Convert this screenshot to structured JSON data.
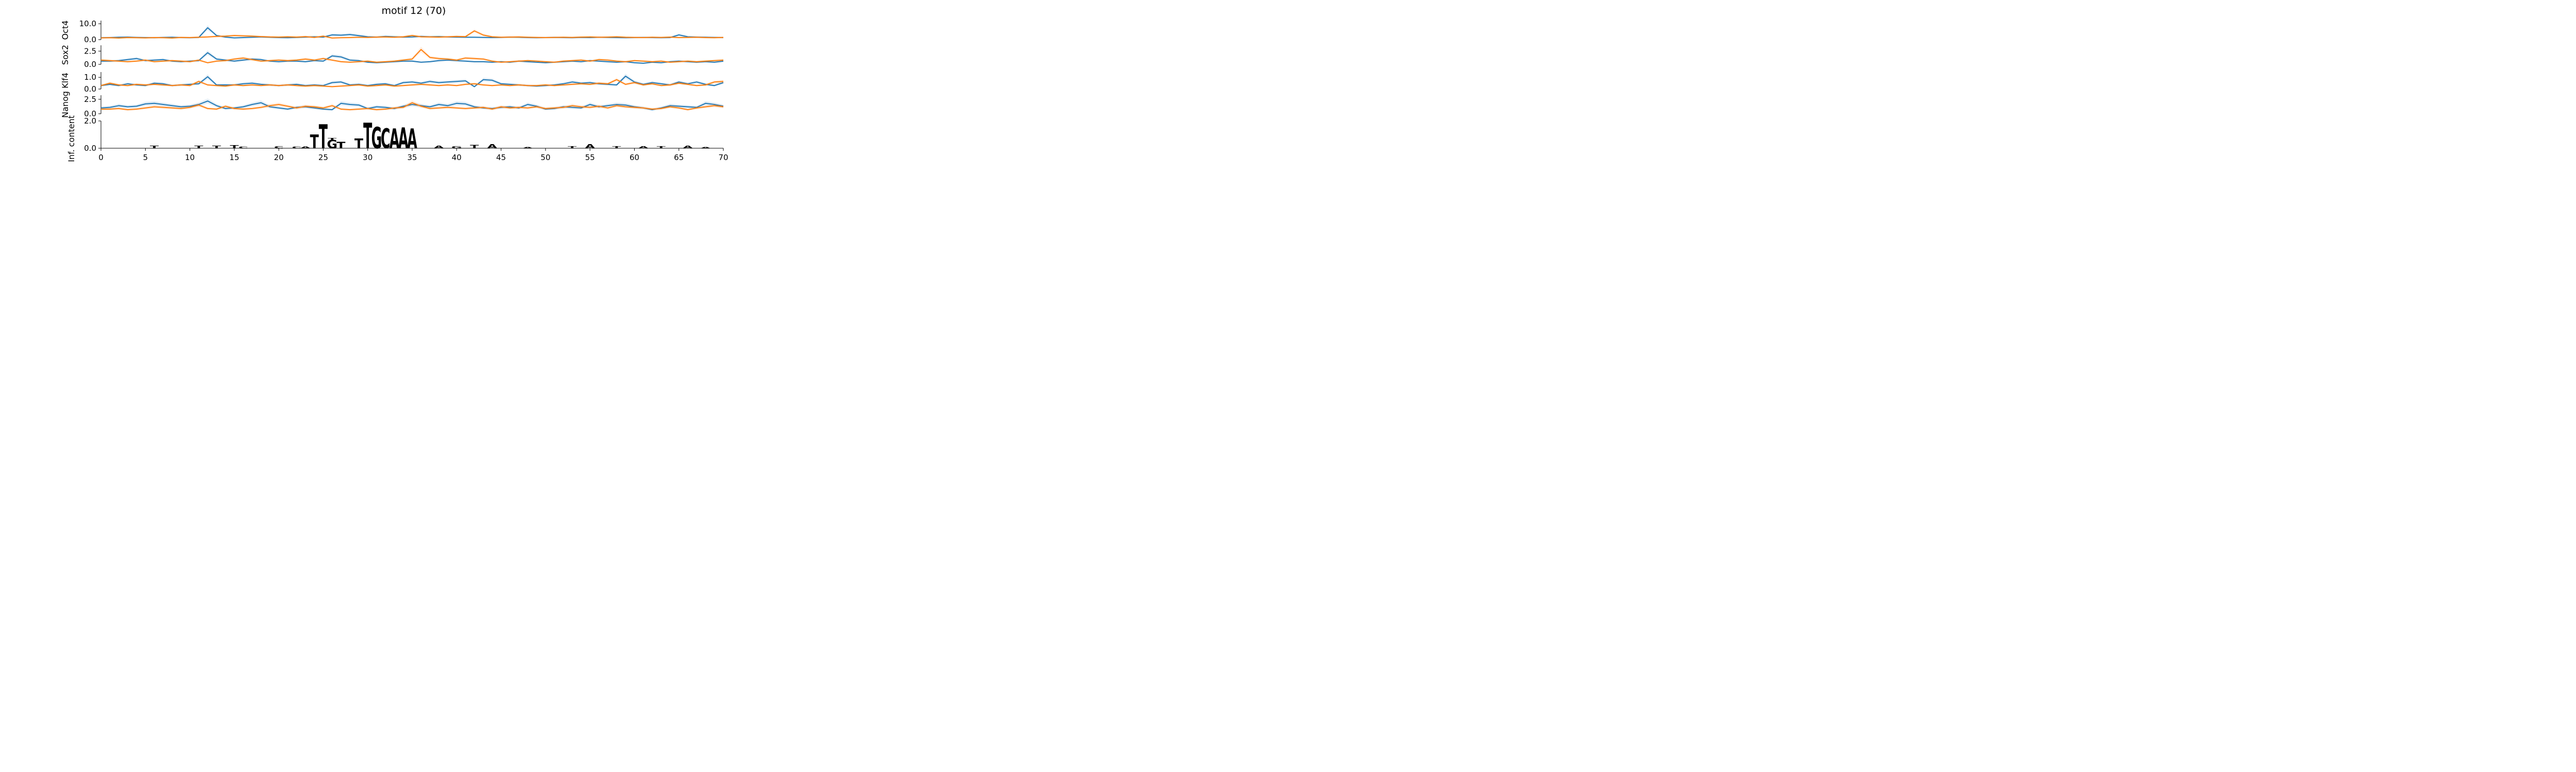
{
  "chart_data": {
    "type": "line",
    "title": "motif 12 (70)",
    "x_ticks": [
      0,
      5,
      10,
      15,
      20,
      25,
      30,
      35,
      40,
      45,
      50,
      55,
      60,
      65,
      70
    ],
    "x_tick_labels": [
      "0",
      "5",
      "10",
      "15",
      "20",
      "25",
      "30",
      "35",
      "40",
      "45",
      "50",
      "55",
      "60",
      "65",
      "70"
    ],
    "xlim": [
      0,
      70
    ],
    "series_colors": {
      "blue": "#1f77b4",
      "orange": "#ff7f0e"
    },
    "panels": [
      {
        "ylabel": "Oct4",
        "ylim": [
          0,
          12
        ],
        "yticks": [
          0,
          10
        ],
        "ytick_labels": [
          "0.0",
          "10.0"
        ],
        "series": [
          {
            "color": "#1f77b4",
            "values": [
              1.2,
              1.3,
              1.5,
              1.6,
              1.4,
              1.3,
              1.2,
              1.4,
              1.5,
              1.3,
              1.2,
              1.4,
              7.5,
              2.6,
              1.6,
              1.1,
              1.3,
              1.5,
              1.7,
              1.5,
              1.3,
              1.2,
              1.4,
              1.6,
              1.8,
              1.6,
              3.0,
              2.8,
              3.2,
              2.5,
              1.8,
              1.6,
              2.0,
              1.8,
              1.6,
              1.7,
              2.0,
              1.8,
              1.9,
              1.7,
              1.6,
              1.5,
              1.5,
              1.4,
              1.3,
              1.4,
              1.6,
              1.5,
              1.3,
              1.2,
              1.3,
              1.4,
              1.3,
              1.2,
              1.4,
              1.3,
              1.5,
              1.4,
              1.3,
              1.2,
              1.3,
              1.4,
              1.3,
              1.2,
              1.3,
              3.0,
              1.8,
              1.6,
              1.5,
              1.4,
              1.3
            ]
          },
          {
            "color": "#ff7f0e",
            "values": [
              1.1,
              1.2,
              1.0,
              1.3,
              1.2,
              1.1,
              1.3,
              1.2,
              1.0,
              1.4,
              1.3,
              1.5,
              1.7,
              2.0,
              2.2,
              2.6,
              2.4,
              2.2,
              1.9,
              1.7,
              1.6,
              1.8,
              1.6,
              1.9,
              1.4,
              2.2,
              1.0,
              1.2,
              1.3,
              1.5,
              1.4,
              1.6,
              1.7,
              1.5,
              1.8,
              2.6,
              1.8,
              1.7,
              1.6,
              1.8,
              2.0,
              1.9,
              5.5,
              2.9,
              1.8,
              1.5,
              1.6,
              1.7,
              1.5,
              1.4,
              1.3,
              1.4,
              1.5,
              1.4,
              1.6,
              1.7,
              1.5,
              1.6,
              1.8,
              1.5,
              1.4,
              1.3,
              1.5,
              1.4,
              1.6,
              1.3,
              1.4,
              1.5,
              1.3,
              1.2,
              1.4
            ]
          }
        ]
      },
      {
        "ylabel": "Sox2",
        "ylim": [
          0,
          3.6
        ],
        "yticks": [
          0,
          2.5
        ],
        "ytick_labels": [
          "0.0",
          "2.5"
        ],
        "series": [
          {
            "color": "#1f77b4",
            "values": [
              0.6,
              0.6,
              0.7,
              0.9,
              1.1,
              0.7,
              0.8,
              0.9,
              0.6,
              0.5,
              0.6,
              0.7,
              2.2,
              1.0,
              0.8,
              0.6,
              0.8,
              1.0,
              0.9,
              0.6,
              0.5,
              0.6,
              0.6,
              0.5,
              0.7,
              0.6,
              1.6,
              1.4,
              0.8,
              0.7,
              0.4,
              0.3,
              0.4,
              0.5,
              0.6,
              0.6,
              0.4,
              0.5,
              0.7,
              0.8,
              0.7,
              0.6,
              0.5,
              0.5,
              0.4,
              0.5,
              0.4,
              0.6,
              0.5,
              0.4,
              0.3,
              0.4,
              0.5,
              0.6,
              0.5,
              0.7,
              0.6,
              0.5,
              0.4,
              0.5,
              0.3,
              0.2,
              0.4,
              0.3,
              0.5,
              0.6,
              0.5,
              0.4,
              0.5,
              0.4,
              0.6
            ]
          },
          {
            "color": "#ff7f0e",
            "values": [
              0.8,
              0.7,
              0.6,
              0.5,
              0.6,
              0.8,
              0.5,
              0.6,
              0.7,
              0.6,
              0.5,
              0.8,
              0.3,
              0.6,
              0.7,
              1.0,
              1.2,
              0.9,
              0.6,
              0.7,
              0.8,
              0.7,
              0.8,
              1.0,
              0.8,
              1.1,
              0.8,
              0.5,
              0.4,
              0.5,
              0.6,
              0.4,
              0.5,
              0.6,
              0.8,
              1.0,
              2.8,
              1.3,
              1.1,
              1.0,
              0.8,
              1.2,
              1.1,
              1.0,
              0.6,
              0.4,
              0.5,
              0.6,
              0.7,
              0.6,
              0.5,
              0.4,
              0.6,
              0.7,
              0.8,
              0.6,
              0.9,
              0.8,
              0.6,
              0.5,
              0.7,
              0.6,
              0.5,
              0.6,
              0.4,
              0.5,
              0.6,
              0.5,
              0.6,
              0.7,
              0.8
            ]
          }
        ]
      },
      {
        "ylabel": "Klf4",
        "ylim": [
          0,
          1.45
        ],
        "yticks": [
          0,
          1.0
        ],
        "ytick_labels": [
          "0.0",
          "1.0"
        ],
        "series": [
          {
            "color": "#1f77b4",
            "values": [
              0.3,
              0.4,
              0.3,
              0.45,
              0.35,
              0.3,
              0.5,
              0.45,
              0.3,
              0.35,
              0.4,
              0.45,
              1.05,
              0.35,
              0.35,
              0.35,
              0.45,
              0.5,
              0.4,
              0.35,
              0.3,
              0.35,
              0.4,
              0.3,
              0.35,
              0.3,
              0.55,
              0.6,
              0.35,
              0.4,
              0.3,
              0.4,
              0.45,
              0.3,
              0.55,
              0.6,
              0.5,
              0.65,
              0.55,
              0.6,
              0.65,
              0.7,
              0.2,
              0.8,
              0.75,
              0.45,
              0.4,
              0.35,
              0.3,
              0.25,
              0.3,
              0.35,
              0.45,
              0.6,
              0.5,
              0.55,
              0.45,
              0.4,
              0.35,
              1.1,
              0.6,
              0.4,
              0.55,
              0.45,
              0.35,
              0.6,
              0.45,
              0.6,
              0.4,
              0.3,
              0.55
            ]
          },
          {
            "color": "#ff7f0e",
            "values": [
              0.3,
              0.5,
              0.35,
              0.3,
              0.4,
              0.35,
              0.4,
              0.35,
              0.3,
              0.35,
              0.3,
              0.65,
              0.35,
              0.3,
              0.25,
              0.35,
              0.3,
              0.35,
              0.3,
              0.35,
              0.3,
              0.35,
              0.3,
              0.25,
              0.3,
              0.25,
              0.2,
              0.25,
              0.3,
              0.35,
              0.25,
              0.3,
              0.35,
              0.25,
              0.3,
              0.35,
              0.4,
              0.35,
              0.3,
              0.35,
              0.3,
              0.4,
              0.45,
              0.35,
              0.3,
              0.35,
              0.3,
              0.35,
              0.3,
              0.3,
              0.35,
              0.3,
              0.35,
              0.4,
              0.45,
              0.4,
              0.5,
              0.45,
              0.8,
              0.4,
              0.55,
              0.35,
              0.45,
              0.3,
              0.35,
              0.5,
              0.4,
              0.3,
              0.35,
              0.6,
              0.65
            ]
          }
        ]
      },
      {
        "ylabel": "Nanog",
        "ylim": [
          0,
          3.2
        ],
        "yticks": [
          0,
          2.5
        ],
        "ytick_labels": [
          "0.0",
          "2.5"
        ],
        "series": [
          {
            "color": "#1f77b4",
            "values": [
              1.0,
              1.1,
              1.4,
              1.2,
              1.3,
              1.7,
              1.8,
              1.6,
              1.4,
              1.2,
              1.3,
              1.6,
              2.2,
              1.4,
              0.9,
              1.0,
              1.2,
              1.6,
              1.9,
              1.2,
              1.0,
              0.8,
              1.1,
              1.2,
              1.0,
              0.8,
              0.7,
              1.8,
              1.6,
              1.5,
              0.9,
              1.2,
              1.1,
              0.9,
              1.3,
              1.6,
              1.4,
              1.2,
              1.6,
              1.4,
              1.8,
              1.7,
              1.2,
              1.0,
              0.9,
              1.1,
              1.2,
              1.0,
              1.6,
              1.3,
              0.8,
              0.9,
              1.2,
              1.1,
              1.0,
              1.6,
              1.2,
              1.4,
              1.6,
              1.5,
              1.2,
              1.0,
              0.7,
              1.0,
              1.4,
              1.3,
              1.2,
              1.1,
              1.8,
              1.6,
              1.3
            ]
          },
          {
            "color": "#ff7f0e",
            "values": [
              0.8,
              0.8,
              0.9,
              0.7,
              0.8,
              1.0,
              1.2,
              1.1,
              1.0,
              0.9,
              1.1,
              1.5,
              0.9,
              0.8,
              1.3,
              0.9,
              0.8,
              0.9,
              1.1,
              1.4,
              1.6,
              1.3,
              1.0,
              1.3,
              1.2,
              1.0,
              1.4,
              0.8,
              0.7,
              0.8,
              0.9,
              0.7,
              0.8,
              1.0,
              1.1,
              1.9,
              1.3,
              0.9,
              1.0,
              1.1,
              1.0,
              0.9,
              1.0,
              1.1,
              0.8,
              1.2,
              1.0,
              1.1,
              1.0,
              1.2,
              0.9,
              1.0,
              1.1,
              1.4,
              1.2,
              1.1,
              1.3,
              1.0,
              1.4,
              1.2,
              1.1,
              1.0,
              0.8,
              0.9,
              1.2,
              1.0,
              0.7,
              1.0,
              1.2,
              1.4,
              1.2
            ]
          }
        ]
      }
    ],
    "logo": {
      "ylabel": "Inf. content",
      "ylim": [
        0,
        2.0
      ],
      "yticks": [
        0,
        2.0
      ],
      "ytick_labels": [
        "0.0",
        "2.0"
      ],
      "letter_colors": {
        "A": "#008000",
        "C": "#0000cc",
        "G": "#ffa500",
        "T": "#ff0000"
      },
      "letters": [
        {
          "pos": 24,
          "stack": [
            [
              "T",
              1.0
            ]
          ]
        },
        {
          "pos": 25,
          "stack": [
            [
              "T",
              1.75
            ]
          ]
        },
        {
          "pos": 26,
          "stack": [
            [
              "G",
              0.6
            ],
            [
              "T",
              0.15
            ]
          ]
        },
        {
          "pos": 27,
          "stack": [
            [
              "T",
              0.45
            ]
          ]
        },
        {
          "pos": 29,
          "stack": [
            [
              "T",
              0.7
            ]
          ]
        },
        {
          "pos": 30,
          "stack": [
            [
              "T",
              1.85
            ]
          ]
        },
        {
          "pos": 31,
          "stack": [
            [
              "G",
              1.55
            ]
          ]
        },
        {
          "pos": 32,
          "stack": [
            [
              "C",
              1.45
            ]
          ]
        },
        {
          "pos": 33,
          "stack": [
            [
              "A",
              1.45
            ]
          ]
        },
        {
          "pos": 34,
          "stack": [
            [
              "A",
              1.5
            ]
          ]
        },
        {
          "pos": 35,
          "stack": [
            [
              "A",
              1.45
            ]
          ]
        },
        {
          "pos": 6,
          "stack": [
            [
              "T",
              0.18
            ]
          ]
        },
        {
          "pos": 11,
          "stack": [
            [
              "T",
              0.18
            ]
          ]
        },
        {
          "pos": 13,
          "stack": [
            [
              "T",
              0.2
            ]
          ]
        },
        {
          "pos": 15,
          "stack": [
            [
              "T",
              0.22
            ]
          ]
        },
        {
          "pos": 16,
          "stack": [
            [
              "C",
              0.12
            ]
          ]
        },
        {
          "pos": 20,
          "stack": [
            [
              "C",
              0.15
            ]
          ]
        },
        {
          "pos": 22,
          "stack": [
            [
              "C",
              0.12
            ]
          ]
        },
        {
          "pos": 23,
          "stack": [
            [
              "A",
              0.12
            ]
          ]
        },
        {
          "pos": 38,
          "stack": [
            [
              "A",
              0.2
            ]
          ]
        },
        {
          "pos": 40,
          "stack": [
            [
              "G",
              0.15
            ]
          ]
        },
        {
          "pos": 42,
          "stack": [
            [
              "T",
              0.25
            ]
          ]
        },
        {
          "pos": 44,
          "stack": [
            [
              "A",
              0.3
            ]
          ]
        },
        {
          "pos": 48,
          "stack": [
            [
              "A",
              0.1
            ]
          ]
        },
        {
          "pos": 53,
          "stack": [
            [
              "T",
              0.15
            ]
          ]
        },
        {
          "pos": 55,
          "stack": [
            [
              "A",
              0.3
            ]
          ]
        },
        {
          "pos": 58,
          "stack": [
            [
              "T",
              0.15
            ]
          ]
        },
        {
          "pos": 61,
          "stack": [
            [
              "A",
              0.15
            ]
          ]
        },
        {
          "pos": 63,
          "stack": [
            [
              "T",
              0.15
            ]
          ]
        },
        {
          "pos": 66,
          "stack": [
            [
              "A",
              0.2
            ]
          ]
        },
        {
          "pos": 68,
          "stack": [
            [
              "A",
              0.1
            ]
          ]
        }
      ]
    }
  }
}
